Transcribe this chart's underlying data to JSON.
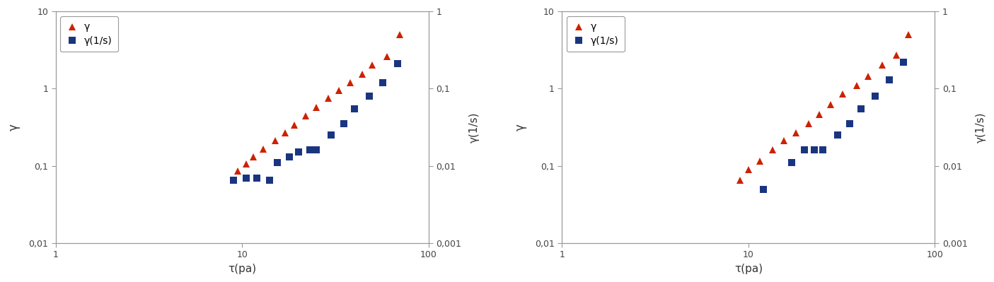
{
  "left": {
    "gamma_x": [
      9.0,
      9.5,
      10.5,
      11.5,
      13.0,
      15.0,
      17.0,
      19.0,
      22.0,
      25.0,
      29.0,
      33.0,
      38.0,
      44.0,
      50.0,
      60.0,
      70.0
    ],
    "gamma_y": [
      0.065,
      0.085,
      0.105,
      0.13,
      0.165,
      0.21,
      0.27,
      0.34,
      0.44,
      0.57,
      0.75,
      0.95,
      1.2,
      1.55,
      2.0,
      2.6,
      5.0
    ],
    "gdot_x": [
      9.0,
      10.5,
      12.0,
      14.0,
      15.5,
      18.0,
      20.0,
      23.0,
      25.0,
      30.0,
      35.0,
      40.0,
      48.0,
      57.0,
      68.0
    ],
    "gdot_y": [
      0.0065,
      0.007,
      0.007,
      0.0065,
      0.011,
      0.013,
      0.015,
      0.016,
      0.016,
      0.025,
      0.035,
      0.055,
      0.08,
      0.12,
      0.21
    ],
    "xlabel": "τ(pa)",
    "ylabel_left": "γ",
    "ylabel_right": "γ(1/s)",
    "xlim": [
      1,
      100
    ],
    "ylim_left": [
      0.01,
      10
    ],
    "ylim_right": [
      0.001,
      1
    ],
    "xticks": [
      1,
      10,
      100
    ],
    "xticklabels": [
      "1",
      "10",
      "100"
    ],
    "yticks_left": [
      0.01,
      0.1,
      1,
      10
    ],
    "yticklabels_left": [
      "0,01",
      "0,1",
      "1",
      "10"
    ],
    "yticks_right": [
      0.001,
      0.01,
      0.1,
      1
    ],
    "yticklabels_right": [
      "0,001",
      "0,01",
      "0,1",
      "1"
    ],
    "legend_gamma": "γ",
    "legend_gdot": "γ(1/s)"
  },
  "right": {
    "gamma_x": [
      9.0,
      10.0,
      11.5,
      13.5,
      15.5,
      18.0,
      21.0,
      24.0,
      27.5,
      32.0,
      38.0,
      44.0,
      52.0,
      62.0,
      72.0
    ],
    "gamma_y": [
      0.065,
      0.09,
      0.115,
      0.16,
      0.21,
      0.27,
      0.35,
      0.46,
      0.62,
      0.85,
      1.1,
      1.45,
      2.0,
      2.7,
      5.0
    ],
    "gdot_x": [
      12.0,
      17.0,
      20.0,
      22.5,
      25.0,
      30.0,
      35.0,
      40.0,
      48.0,
      57.0,
      68.0
    ],
    "gdot_y": [
      0.005,
      0.011,
      0.016,
      0.016,
      0.016,
      0.025,
      0.035,
      0.055,
      0.08,
      0.13,
      0.22
    ],
    "xlabel": "τ(pa)",
    "ylabel_left": "γ",
    "ylabel_right": "γ(1/s)",
    "xlim": [
      1,
      100
    ],
    "ylim_left": [
      0.01,
      10
    ],
    "ylim_right": [
      0.001,
      1
    ],
    "xticks": [
      1,
      10,
      100
    ],
    "xticklabels": [
      "1",
      "10",
      "100"
    ],
    "yticks_left": [
      0.01,
      0.1,
      1,
      10
    ],
    "yticklabels_left": [
      "0,01",
      "0,1",
      "1",
      "10"
    ],
    "yticks_right": [
      0.001,
      0.01,
      0.1,
      1
    ],
    "yticklabels_right": [
      "0,001",
      "0,01",
      "0,1",
      "1"
    ],
    "legend_gamma": "γ",
    "legend_gdot": "γ(1/s)"
  },
  "marker_color_gamma": "#cc2200",
  "marker_color_gdot": "#1a3580",
  "spine_color": "#999999",
  "tick_color": "#444444",
  "label_color": "#333333",
  "bg_color": "#ffffff",
  "figure_width": 14.05,
  "figure_height": 3.99
}
